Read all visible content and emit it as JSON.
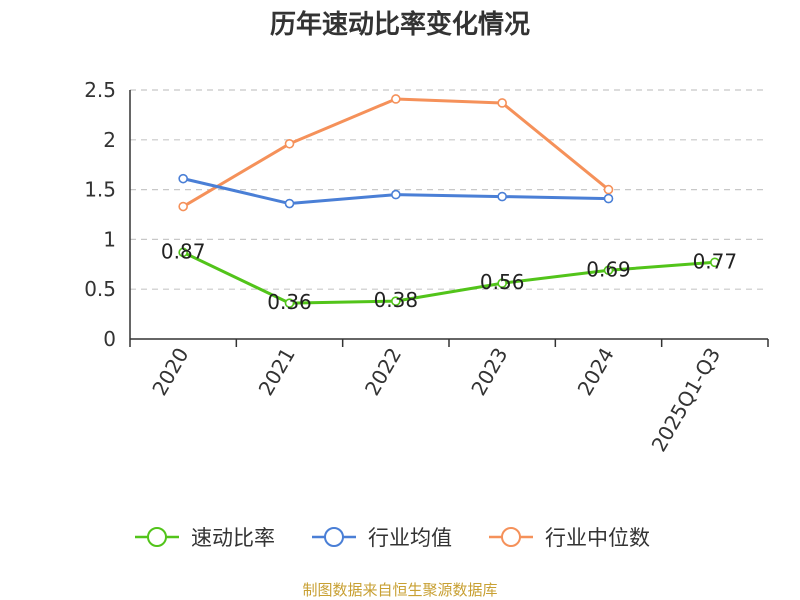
{
  "chart_data": {
    "type": "line",
    "title": "历年速动比率变化情况",
    "categories": [
      "2020",
      "2021",
      "2022",
      "2023",
      "2024",
      "2025Q1-Q3"
    ],
    "ylim": [
      0,
      2.5
    ],
    "yticks": [
      "0",
      "0.5",
      "1",
      "1.5",
      "2",
      "2.5"
    ],
    "grid": true,
    "legend_position": "bottom",
    "series": [
      {
        "name": "速动比率",
        "color": "#52c41a",
        "values": [
          0.87,
          0.36,
          0.38,
          0.56,
          0.69,
          0.77
        ],
        "labels": [
          "0.87",
          "0.36",
          "0.38",
          "0.56",
          "0.69",
          "0.77"
        ]
      },
      {
        "name": "行业均值",
        "color": "#4a7fd6",
        "values": [
          1.61,
          1.36,
          1.45,
          1.43,
          1.41,
          null
        ]
      },
      {
        "name": "行业中位数",
        "color": "#f5915a",
        "values": [
          1.33,
          1.96,
          2.41,
          2.37,
          1.5,
          null
        ]
      }
    ]
  },
  "source": "制图数据来自恒生聚源数据库"
}
